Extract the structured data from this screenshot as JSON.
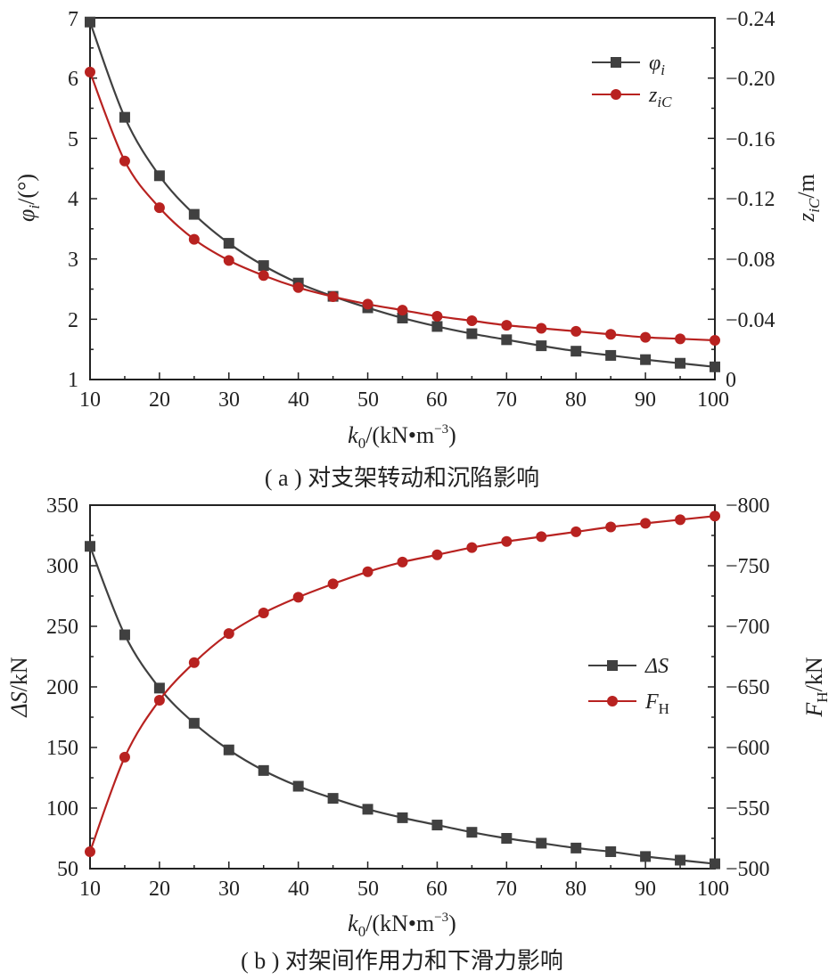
{
  "colors": {
    "dark_series": "#404040",
    "red_series": "#b82220",
    "axis": "#222222"
  },
  "chart_data": [
    {
      "type": "line",
      "caption": "( a ) 对支架转动和沉陷影响",
      "xlabel_main": "k",
      "xlabel_sub": "0",
      "xlabel_rest": "/(kN•m",
      "xlabel_sup": "−3",
      "xlabel_close": ")",
      "x": [
        10,
        15,
        20,
        25,
        30,
        35,
        40,
        45,
        50,
        55,
        60,
        65,
        70,
        75,
        80,
        85,
        90,
        95,
        100
      ],
      "xlim": [
        10,
        100
      ],
      "xticks": [
        "10",
        "20",
        "30",
        "40",
        "50",
        "60",
        "70",
        "80",
        "90",
        "100"
      ],
      "ylabel_left_main": "φ",
      "ylabel_left_sub": "i",
      "ylabel_left_rest": "/(°)",
      "ylim_left": [
        1,
        7
      ],
      "yticks_left": [
        "1",
        "2",
        "3",
        "4",
        "5",
        "6",
        "7"
      ],
      "ylabel_right_main": "z",
      "ylabel_right_sub": "iC",
      "ylabel_right_rest": "/m",
      "ylim_right": [
        0,
        -0.24
      ],
      "yticks_right": [
        "0",
        "−0.04",
        "−0.08",
        "−0.12",
        "−0.16",
        "−0.20",
        "−0.24"
      ],
      "legend_position": "top-right",
      "series": [
        {
          "name_main": "φ",
          "name_sub": "i",
          "axis": "left",
          "marker": "square",
          "color": "#404040",
          "values": [
            6.93,
            5.35,
            4.38,
            3.74,
            3.26,
            2.89,
            2.6,
            2.38,
            2.19,
            2.02,
            1.88,
            1.76,
            1.66,
            1.56,
            1.47,
            1.4,
            1.33,
            1.27,
            1.21
          ]
        },
        {
          "name_main": "z",
          "name_sub": "iC",
          "axis": "right",
          "marker": "circle",
          "color": "#b82220",
          "values": [
            -0.204,
            -0.145,
            -0.114,
            -0.093,
            -0.079,
            -0.069,
            -0.061,
            -0.055,
            -0.05,
            -0.046,
            -0.042,
            -0.039,
            -0.036,
            -0.034,
            -0.032,
            -0.03,
            -0.028,
            -0.027,
            -0.026
          ]
        }
      ]
    },
    {
      "type": "line",
      "caption": "( b ) 对架间作用力和下滑力影响",
      "xlabel_main": "k",
      "xlabel_sub": "0",
      "xlabel_rest": "/(kN•m",
      "xlabel_sup": "−3",
      "xlabel_close": ")",
      "x": [
        10,
        15,
        20,
        25,
        30,
        35,
        40,
        45,
        50,
        55,
        60,
        65,
        70,
        75,
        80,
        85,
        90,
        95,
        100
      ],
      "xlim": [
        10,
        100
      ],
      "xticks": [
        "10",
        "20",
        "30",
        "40",
        "50",
        "60",
        "70",
        "80",
        "90",
        "100"
      ],
      "ylabel_left_main": "ΔS",
      "ylabel_left_sub": "",
      "ylabel_left_rest": "/kN",
      "ylim_left": [
        50,
        350
      ],
      "yticks_left": [
        "50",
        "100",
        "150",
        "200",
        "250",
        "300",
        "350"
      ],
      "ylabel_right_main": "F",
      "ylabel_right_sub": "H",
      "ylabel_right_rest": "/kN",
      "ylim_right": [
        -500,
        -800
      ],
      "yticks_right": [
        "−500",
        "−550",
        "−600",
        "−650",
        "−700",
        "−750",
        "−800"
      ],
      "legend_position": "center-right",
      "series": [
        {
          "name_main": "ΔS",
          "name_sub": "",
          "axis": "left",
          "marker": "square",
          "color": "#404040",
          "values": [
            316,
            243,
            199,
            170,
            148,
            131,
            118,
            108,
            99,
            92,
            86,
            80,
            75,
            71,
            67,
            64,
            60,
            57,
            54
          ]
        },
        {
          "name_main": "F",
          "name_sub": "H",
          "axis": "right",
          "marker": "circle",
          "color": "#b82220",
          "values": [
            -514,
            -592,
            -639,
            -670,
            -694,
            -711,
            -724,
            -735,
            -745,
            -753,
            -759,
            -765,
            -770,
            -774,
            -778,
            -782,
            -785,
            -788,
            -791
          ]
        }
      ]
    }
  ]
}
